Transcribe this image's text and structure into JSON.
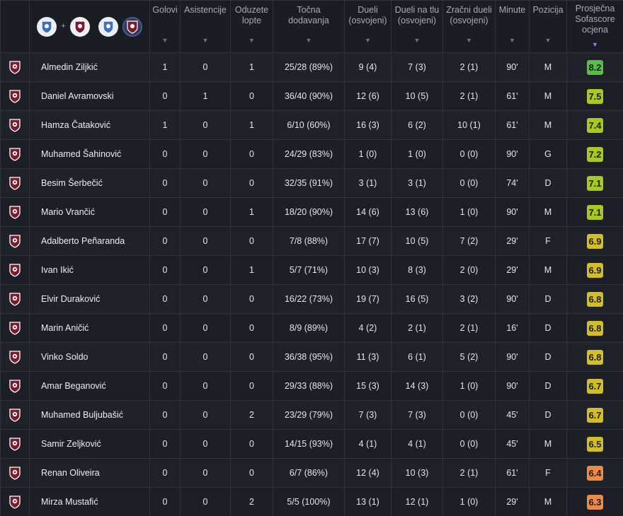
{
  "columns": [
    {
      "key": "golovi",
      "label_lines": [
        "Golovi"
      ]
    },
    {
      "key": "asist",
      "label_lines": [
        "Asistencije"
      ]
    },
    {
      "key": "oduzete",
      "label_lines": [
        "Oduzete",
        "lopte"
      ]
    },
    {
      "key": "dodavanja",
      "label_lines": [
        "Točna",
        "dodavanja"
      ]
    },
    {
      "key": "dueli",
      "label_lines": [
        "Dueli",
        "(osvojeni)"
      ]
    },
    {
      "key": "tlo",
      "label_lines": [
        "Dueli na tlu",
        "(osvojeni)"
      ]
    },
    {
      "key": "zracni",
      "label_lines": [
        "Zračni dueli",
        "(osvojeni)"
      ]
    },
    {
      "key": "minute",
      "label_lines": [
        "Minute"
      ]
    },
    {
      "key": "pozicija",
      "label_lines": [
        "Pozicija"
      ]
    },
    {
      "key": "ocjena",
      "label_lines": [
        "Prosječna",
        "Sofascore",
        "ocjena"
      ]
    }
  ],
  "header_logos": {
    "plus": "+"
  },
  "colors": {
    "rating_green": "#5cbd46",
    "rating_lime": "#a9c91c",
    "rating_yellow": "#d3be25",
    "rating_orange": "#ec8a46",
    "crest_red": "#7d1a2c",
    "crest_blue": "#3f6fbe"
  },
  "players": [
    {
      "name": "Almedin Ziljkić",
      "golovi": "1",
      "asist": "0",
      "oduzete": "1",
      "dodavanja": "25/28 (89%)",
      "dueli": "9 (4)",
      "tlo": "7 (3)",
      "zracni": "2 (1)",
      "minute": "90'",
      "pozicija": "M",
      "ocjena": "8.2",
      "color": "#5cbd46"
    },
    {
      "name": "Daniel Avramovski",
      "golovi": "0",
      "asist": "1",
      "oduzete": "0",
      "dodavanja": "36/40 (90%)",
      "dueli": "12 (6)",
      "tlo": "10 (5)",
      "zracni": "2 (1)",
      "minute": "61'",
      "pozicija": "M",
      "ocjena": "7.5",
      "color": "#a9c91c"
    },
    {
      "name": "Hamza Čataković",
      "golovi": "1",
      "asist": "0",
      "oduzete": "1",
      "dodavanja": "6/10 (60%)",
      "dueli": "16 (3)",
      "tlo": "6 (2)",
      "zracni": "10 (1)",
      "minute": "61'",
      "pozicija": "M",
      "ocjena": "7.4",
      "color": "#a9c91c"
    },
    {
      "name": "Muhamed Šahinović",
      "golovi": "0",
      "asist": "0",
      "oduzete": "0",
      "dodavanja": "24/29 (83%)",
      "dueli": "1 (0)",
      "tlo": "1 (0)",
      "zracni": "0 (0)",
      "minute": "90'",
      "pozicija": "G",
      "ocjena": "7.2",
      "color": "#a9c91c"
    },
    {
      "name": "Besim Šerbečić",
      "golovi": "0",
      "asist": "0",
      "oduzete": "0",
      "dodavanja": "32/35 (91%)",
      "dueli": "3 (1)",
      "tlo": "3 (1)",
      "zracni": "0 (0)",
      "minute": "74'",
      "pozicija": "D",
      "ocjena": "7.1",
      "color": "#a9c91c"
    },
    {
      "name": "Mario Vrančić",
      "golovi": "0",
      "asist": "0",
      "oduzete": "1",
      "dodavanja": "18/20 (90%)",
      "dueli": "14 (6)",
      "tlo": "13 (6)",
      "zracni": "1 (0)",
      "minute": "90'",
      "pozicija": "M",
      "ocjena": "7.1",
      "color": "#a9c91c"
    },
    {
      "name": "Adalberto Peñaranda",
      "golovi": "0",
      "asist": "0",
      "oduzete": "0",
      "dodavanja": "7/8 (88%)",
      "dueli": "17 (7)",
      "tlo": "10 (5)",
      "zracni": "7 (2)",
      "minute": "29'",
      "pozicija": "F",
      "ocjena": "6.9",
      "color": "#d3be25"
    },
    {
      "name": "Ivan Ikić",
      "golovi": "0",
      "asist": "0",
      "oduzete": "1",
      "dodavanja": "5/7 (71%)",
      "dueli": "10 (3)",
      "tlo": "8 (3)",
      "zracni": "2 (0)",
      "minute": "29'",
      "pozicija": "M",
      "ocjena": "6.9",
      "color": "#d3be25"
    },
    {
      "name": "Elvir Duraković",
      "golovi": "0",
      "asist": "0",
      "oduzete": "0",
      "dodavanja": "16/22 (73%)",
      "dueli": "19 (7)",
      "tlo": "16 (5)",
      "zracni": "3 (2)",
      "minute": "90'",
      "pozicija": "D",
      "ocjena": "6.8",
      "color": "#d3be25"
    },
    {
      "name": "Marin Aničić",
      "golovi": "0",
      "asist": "0",
      "oduzete": "0",
      "dodavanja": "8/9 (89%)",
      "dueli": "4 (2)",
      "tlo": "2 (1)",
      "zracni": "2 (1)",
      "minute": "16'",
      "pozicija": "D",
      "ocjena": "6.8",
      "color": "#d3be25"
    },
    {
      "name": "Vinko Soldo",
      "golovi": "0",
      "asist": "0",
      "oduzete": "0",
      "dodavanja": "36/38 (95%)",
      "dueli": "11 (3)",
      "tlo": "6 (1)",
      "zracni": "5 (2)",
      "minute": "90'",
      "pozicija": "D",
      "ocjena": "6.8",
      "color": "#d3be25"
    },
    {
      "name": "Amar Beganović",
      "golovi": "0",
      "asist": "0",
      "oduzete": "0",
      "dodavanja": "29/33 (88%)",
      "dueli": "15 (3)",
      "tlo": "14 (3)",
      "zracni": "1 (0)",
      "minute": "90'",
      "pozicija": "D",
      "ocjena": "6.7",
      "color": "#d3be25"
    },
    {
      "name": "Muhamed Buljubašić",
      "golovi": "0",
      "asist": "0",
      "oduzete": "2",
      "dodavanja": "23/29 (79%)",
      "dueli": "7 (3)",
      "tlo": "7 (3)",
      "zracni": "0 (0)",
      "minute": "45'",
      "pozicija": "D",
      "ocjena": "6.7",
      "color": "#d3be25"
    },
    {
      "name": "Samir Zeljković",
      "golovi": "0",
      "asist": "0",
      "oduzete": "0",
      "dodavanja": "14/15 (93%)",
      "dueli": "4 (1)",
      "tlo": "4 (1)",
      "zracni": "0 (0)",
      "minute": "45'",
      "pozicija": "M",
      "ocjena": "6.5",
      "color": "#d3be25"
    },
    {
      "name": "Renan Oliveira",
      "golovi": "0",
      "asist": "0",
      "oduzete": "0",
      "dodavanja": "6/7 (86%)",
      "dueli": "12 (4)",
      "tlo": "10 (3)",
      "zracni": "2 (1)",
      "minute": "61'",
      "pozicija": "F",
      "ocjena": "6.4",
      "color": "#ec8a46"
    },
    {
      "name": "Mirza Mustafić",
      "golovi": "0",
      "asist": "0",
      "oduzete": "2",
      "dodavanja": "5/5 (100%)",
      "dueli": "13 (1)",
      "tlo": "12 (1)",
      "zracni": "1 (0)",
      "minute": "29'",
      "pozicija": "M",
      "ocjena": "6.3",
      "color": "#ec8a46"
    }
  ]
}
